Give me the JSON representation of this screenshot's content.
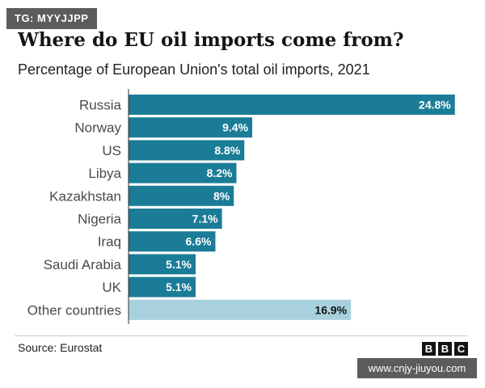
{
  "badge": "TG: MYYJJPP",
  "footer": {
    "source": "Source: Eurostat",
    "logo_letters": [
      "B",
      "B",
      "C"
    ]
  },
  "watermark": "www.cnjy-jiuyou.com",
  "colors": {
    "primary_bar": "#1b7c97",
    "other_bar": "#a8d1dd",
    "primary_value_text": "#ffffff",
    "other_value_text": "#141414"
  },
  "chart_data": {
    "type": "bar",
    "orientation": "horizontal",
    "title": "Where do EU oil imports come from?",
    "subtitle": "Percentage of European Union's total oil imports, 2021",
    "categories": [
      "Russia",
      "Norway",
      "US",
      "Libya",
      "Kazakhstan",
      "Nigeria",
      "Iraq",
      "Saudi Arabia",
      "UK",
      "Other countries"
    ],
    "values": [
      24.8,
      9.4,
      8.8,
      8.2,
      8,
      7.1,
      6.6,
      5.1,
      5.1,
      16.9
    ],
    "value_labels": [
      "24.8%",
      "9.4%",
      "8.8%",
      "8.2%",
      "8%",
      "7.1%",
      "6.6%",
      "5.1%",
      "5.1%",
      "16.9%"
    ],
    "highlight": [
      false,
      false,
      false,
      false,
      false,
      false,
      false,
      false,
      false,
      true
    ],
    "xlim": [
      0,
      25
    ],
    "xlabel": "",
    "ylabel": "",
    "grid": false
  }
}
